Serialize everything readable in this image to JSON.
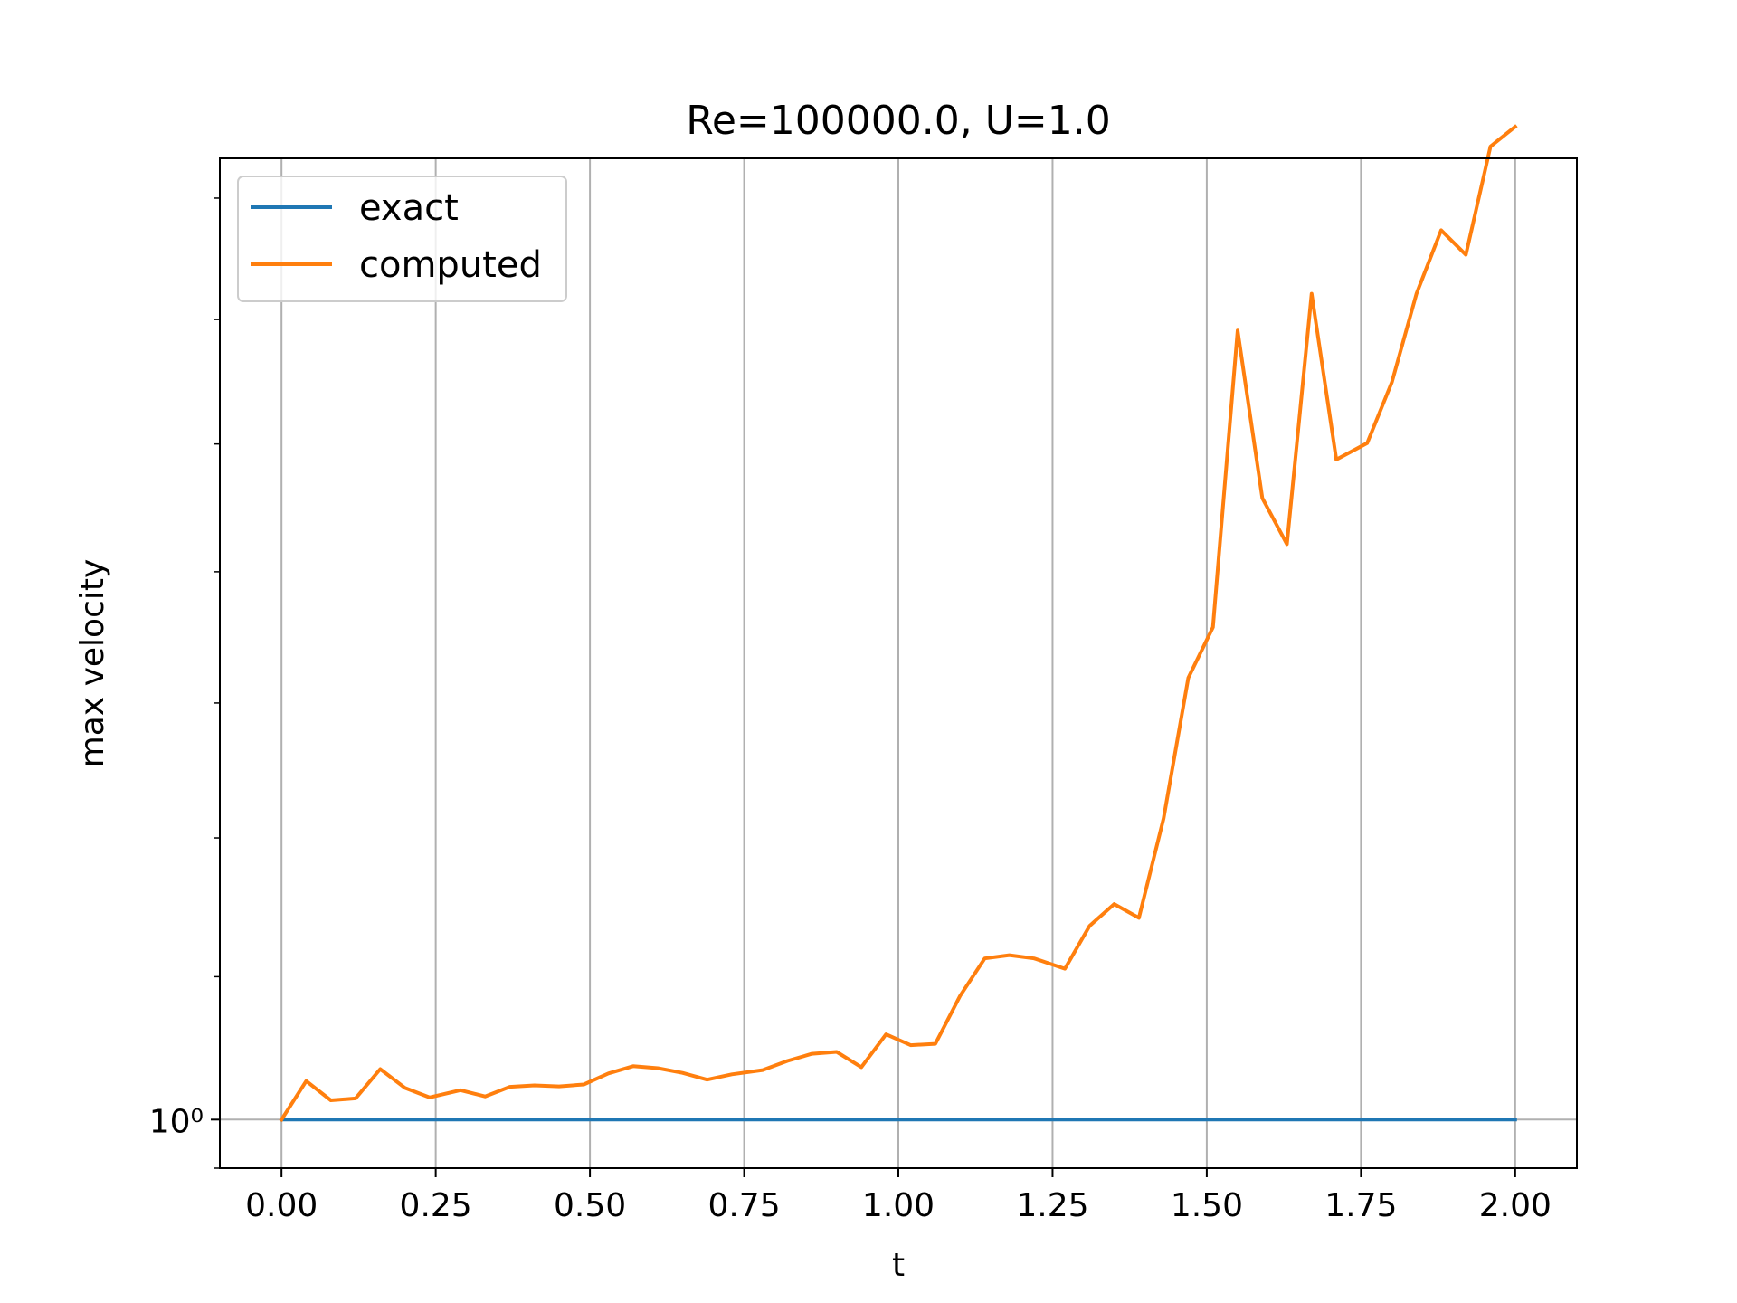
{
  "chart_data": {
    "type": "line",
    "title": "Re=100000.0, U=1.0",
    "xlabel": "t",
    "ylabel": "max velocity",
    "xlim": [
      -0.1,
      2.1
    ],
    "ylim": [
      0.99,
      1.22
    ],
    "yscale": "log",
    "grid": "x-major-and-y-at-1",
    "legend_position": "top-left",
    "x_ticks": [
      0.0,
      0.25,
      0.5,
      0.75,
      1.0,
      1.25,
      1.5,
      1.75,
      2.0
    ],
    "x_tick_labels": [
      "0.00",
      "0.25",
      "0.50",
      "0.75",
      "1.00",
      "1.25",
      "1.50",
      "1.75",
      "2.00"
    ],
    "y_major_ticks": [
      1.0
    ],
    "y_major_tick_labels": [
      "10⁰"
    ],
    "y_minor_ticks": [
      0.99,
      1.03,
      1.06,
      1.09,
      1.12,
      1.15,
      1.18,
      1.21
    ],
    "series": [
      {
        "name": "exact",
        "color": "#1f77b4",
        "x": [
          0.0,
          2.0
        ],
        "y": [
          1.0,
          1.0
        ]
      },
      {
        "name": "computed",
        "color": "#ff7f0e",
        "x": [
          0.0,
          0.04,
          0.08,
          0.12,
          0.16,
          0.2,
          0.24,
          0.29,
          0.33,
          0.37,
          0.41,
          0.45,
          0.49,
          0.53,
          0.57,
          0.61,
          0.65,
          0.69,
          0.73,
          0.78,
          0.82,
          0.86,
          0.9,
          0.94,
          0.98,
          1.02,
          1.06,
          1.1,
          1.14,
          1.18,
          1.22,
          1.27,
          1.31,
          1.35,
          1.39,
          1.43,
          1.47,
          1.51,
          1.55,
          1.59,
          1.63,
          1.67,
          1.71,
          1.76,
          1.8,
          1.84,
          1.88,
          1.92,
          1.96,
          2.0
        ],
        "y": [
          1.0,
          1.008,
          1.004,
          1.0044,
          1.0105,
          1.0066,
          1.0046,
          1.0061,
          1.0048,
          1.0068,
          1.0071,
          1.0069,
          1.0073,
          1.0096,
          1.0111,
          1.0107,
          1.0097,
          1.0083,
          1.0094,
          1.0103,
          1.0122,
          1.0137,
          1.0141,
          1.0109,
          1.0178,
          1.0155,
          1.0158,
          1.0259,
          1.0339,
          1.0346,
          1.0339,
          1.0317,
          1.0409,
          1.0456,
          1.0426,
          1.0643,
          1.0957,
          1.1072,
          1.1773,
          1.1372,
          1.1264,
          1.1863,
          1.1463,
          1.1502,
          1.1648,
          1.1863,
          1.202,
          1.1959,
          1.223,
          1.228
        ]
      }
    ]
  }
}
